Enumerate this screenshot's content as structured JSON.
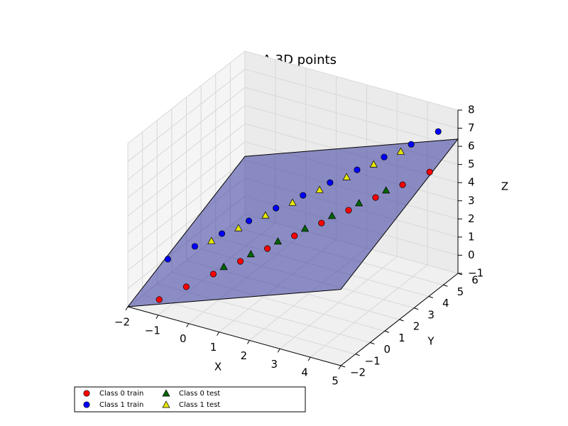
{
  "chart_data": {
    "type": "scatter3d",
    "title": "LDA 3D points",
    "x_label": "X",
    "y_label": "Y",
    "z_label": "Z",
    "xlim": [
      -2,
      5
    ],
    "ylim": [
      -2,
      6
    ],
    "zlim": [
      -1,
      8
    ],
    "xticks": [
      {
        "value": -2,
        "label": "−2"
      },
      {
        "value": -1,
        "label": "−1"
      },
      0,
      1,
      2,
      3,
      4,
      5
    ],
    "yticks": [
      {
        "value": -2,
        "label": "−2"
      },
      {
        "value": -1,
        "label": "−1"
      },
      0,
      1,
      2,
      3,
      4,
      5,
      6
    ],
    "zticks": [
      {
        "value": -1,
        "label": "−1"
      },
      0,
      1,
      2,
      3,
      4,
      5,
      6,
      7,
      8
    ],
    "grid": true,
    "legend": "lower left",
    "plane": {
      "color": "#3a3aa0",
      "x": [
        -2,
        -2,
        5,
        5
      ],
      "y": [
        -2,
        6,
        6,
        -2
      ],
      "z": [
        -1.0,
        2.2,
        6.4,
        3.2
      ]
    },
    "series": [
      {
        "name": "Class 0 train",
        "marker": "circle",
        "color": "#ff0000",
        "x": [
          -1.4,
          -0.8,
          -0.2,
          0.4,
          1.0,
          1.6,
          2.2,
          2.8,
          3.4,
          4.0,
          4.6
        ],
        "y": [
          -1.1,
          -0.5,
          0.1,
          0.7,
          1.3,
          1.9,
          2.5,
          3.1,
          3.7,
          4.3,
          4.9
        ],
        "z": [
          -0.9,
          -0.3,
          0.3,
          0.9,
          1.5,
          2.1,
          2.7,
          3.3,
          3.9,
          4.5,
          5.1
        ]
      },
      {
        "name": "Class 1 train",
        "marker": "circle",
        "color": "#0000ff",
        "x": [
          -1.6,
          -1.0,
          -0.4,
          0.2,
          0.8,
          1.4,
          2.0,
          2.6,
          3.2,
          3.8,
          4.4
        ],
        "y": [
          -0.1,
          0.5,
          1.1,
          1.7,
          2.3,
          2.9,
          3.5,
          4.1,
          4.7,
          5.3,
          5.9
        ],
        "z": [
          0.6,
          1.2,
          1.8,
          2.4,
          3.0,
          3.6,
          4.2,
          4.8,
          5.4,
          6.0,
          6.6
        ]
      },
      {
        "name": "Class 0 test",
        "marker": "triangle",
        "color": "#006400",
        "x": [
          0.0,
          0.6,
          1.2,
          1.8,
          2.4,
          3.0,
          3.6
        ],
        "y": [
          0.4,
          1.0,
          1.6,
          2.2,
          2.8,
          3.4,
          4.0
        ],
        "z": [
          0.6,
          1.2,
          1.8,
          2.4,
          3.0,
          3.6,
          4.2
        ]
      },
      {
        "name": "Class 1 test",
        "marker": "triangle",
        "color": "#e6e600",
        "x": [
          -0.6,
          0.0,
          0.6,
          1.2,
          1.8,
          2.4,
          3.0,
          3.6
        ],
        "y": [
          0.8,
          1.4,
          2.0,
          2.6,
          3.2,
          3.8,
          4.4,
          5.0
        ],
        "z": [
          1.5,
          2.1,
          2.7,
          3.3,
          3.9,
          4.5,
          5.1,
          5.7
        ]
      }
    ]
  }
}
